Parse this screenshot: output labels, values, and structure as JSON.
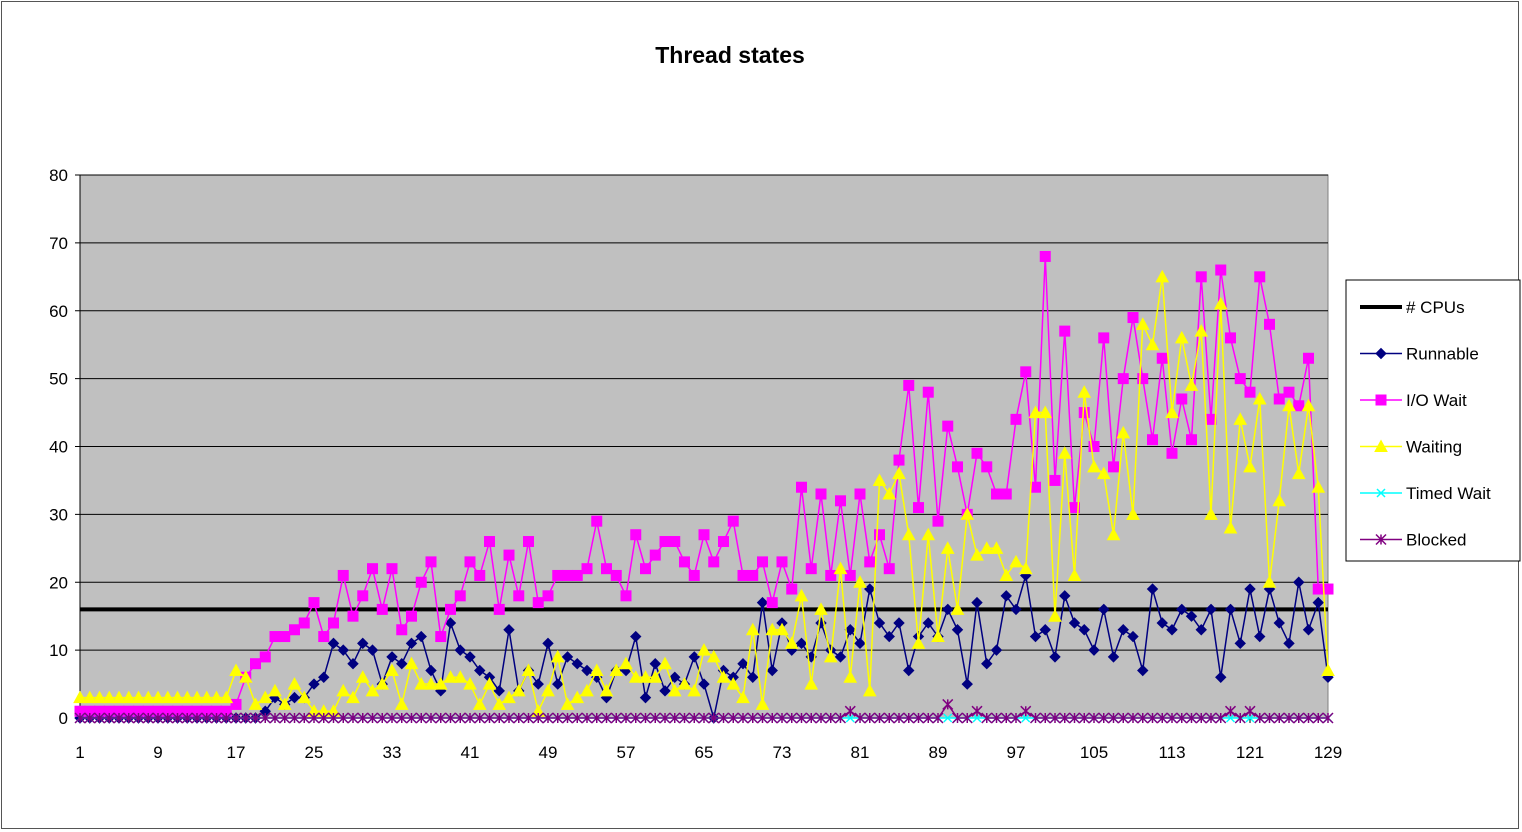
{
  "chart_data": {
    "type": "line",
    "title": "Thread states",
    "xlabel": "",
    "ylabel": "",
    "ylim": [
      0,
      80
    ],
    "yticks": [
      0,
      10,
      20,
      30,
      40,
      50,
      60,
      70,
      80
    ],
    "xticks": [
      1,
      9,
      17,
      25,
      33,
      41,
      49,
      57,
      65,
      73,
      81,
      89,
      97,
      105,
      113,
      121,
      129
    ],
    "x_start": 1,
    "x_end": 129,
    "grid": true,
    "legend_position": "right",
    "series": [
      {
        "name": "# CPUs",
        "color": "#000000",
        "marker": "none",
        "constant": 16
      },
      {
        "name": "Runnable",
        "color": "#000080",
        "marker": "diamond",
        "values": [
          0,
          0,
          0,
          0,
          0,
          0,
          0,
          0,
          0,
          0,
          0,
          0,
          0,
          0,
          0,
          0,
          0,
          0,
          0,
          1,
          3,
          2,
          3,
          3,
          5,
          6,
          11,
          10,
          8,
          11,
          10,
          5,
          9,
          8,
          11,
          12,
          7,
          4,
          14,
          10,
          9,
          7,
          6,
          4,
          13,
          4,
          7,
          5,
          11,
          5,
          9,
          8,
          7,
          6,
          3,
          7,
          7,
          12,
          3,
          8,
          4,
          6,
          5,
          9,
          5,
          0,
          7,
          6,
          8,
          6,
          17,
          7,
          14,
          10,
          11,
          9,
          14,
          10,
          9,
          13,
          11,
          19,
          14,
          12,
          14,
          7,
          12,
          14,
          12,
          16,
          13,
          5,
          17,
          8,
          10,
          18,
          16,
          21,
          12,
          13,
          9,
          18,
          14,
          13,
          10,
          16,
          9,
          13,
          12,
          7,
          19,
          14,
          13,
          16,
          15,
          13,
          16,
          6,
          16,
          11,
          19,
          12,
          19,
          14,
          11,
          20,
          13,
          17,
          6
        ]
      },
      {
        "name": "I/O Wait",
        "color": "#ff00ff",
        "marker": "square",
        "values": [
          1,
          1,
          1,
          1,
          1,
          1,
          1,
          1,
          1,
          1,
          1,
          1,
          1,
          1,
          1,
          1,
          2,
          6,
          8,
          9,
          12,
          12,
          13,
          14,
          17,
          12,
          14,
          21,
          15,
          18,
          22,
          16,
          22,
          13,
          15,
          20,
          23,
          12,
          16,
          18,
          23,
          21,
          26,
          16,
          24,
          18,
          26,
          17,
          18,
          21,
          21,
          21,
          22,
          29,
          22,
          21,
          18,
          27,
          22,
          24,
          26,
          26,
          23,
          21,
          27,
          23,
          26,
          29,
          21,
          21,
          23,
          17,
          23,
          19,
          34,
          22,
          33,
          21,
          32,
          21,
          33,
          23,
          27,
          22,
          38,
          49,
          31,
          48,
          29,
          43,
          37,
          30,
          39,
          37,
          33,
          33,
          44,
          51,
          34,
          68,
          35,
          57,
          31,
          45,
          40,
          56,
          37,
          50,
          59,
          50,
          41,
          53,
          39,
          47,
          41,
          65,
          44,
          66,
          56,
          50,
          48,
          65,
          58,
          47,
          48,
          46,
          53,
          19,
          19
        ]
      },
      {
        "name": "Waiting",
        "color": "#ffff00",
        "marker": "triangle",
        "values": [
          3,
          3,
          3,
          3,
          3,
          3,
          3,
          3,
          3,
          3,
          3,
          3,
          3,
          3,
          3,
          3,
          7,
          6,
          2,
          3,
          4,
          2,
          5,
          3,
          1,
          1,
          1,
          4,
          3,
          6,
          4,
          5,
          7,
          2,
          8,
          5,
          5,
          5,
          6,
          6,
          5,
          2,
          5,
          2,
          3,
          4,
          7,
          1,
          4,
          9,
          2,
          3,
          4,
          7,
          4,
          7,
          8,
          6,
          6,
          6,
          8,
          4,
          5,
          4,
          10,
          9,
          6,
          5,
          3,
          13,
          2,
          13,
          13,
          11,
          18,
          5,
          16,
          9,
          22,
          6,
          20,
          4,
          35,
          33,
          36,
          27,
          11,
          27,
          12,
          25,
          16,
          30,
          24,
          25,
          25,
          21,
          23,
          22,
          45,
          45,
          15,
          39,
          21,
          48,
          37,
          36,
          27,
          42,
          30,
          58,
          55,
          65,
          45,
          56,
          49,
          57,
          30,
          61,
          28,
          44,
          37,
          47,
          20,
          32,
          46,
          36,
          46,
          34,
          7
        ]
      },
      {
        "name": "Timed Wait",
        "color": "#00ffff",
        "marker": "x",
        "values": [
          0,
          0,
          0,
          0,
          0,
          0,
          0,
          0,
          0,
          0,
          0,
          0,
          0,
          0,
          0,
          0,
          0,
          0,
          0,
          0,
          0,
          0,
          0,
          0,
          0,
          0,
          0,
          0,
          0,
          0,
          0,
          0,
          0,
          0,
          0,
          0,
          0,
          0,
          0,
          0,
          0,
          0,
          0,
          0,
          0,
          0,
          0,
          0,
          0,
          0,
          0,
          0,
          0,
          0,
          0,
          0,
          0,
          0,
          0,
          0,
          0,
          0,
          0,
          0,
          0,
          0,
          0,
          0,
          0,
          0,
          0,
          0,
          0,
          0,
          0,
          0,
          0,
          0,
          0,
          0,
          0,
          0,
          0,
          0,
          0,
          0,
          0,
          0,
          0,
          0,
          0,
          0,
          0,
          0,
          0,
          0,
          0,
          0,
          0,
          0,
          0,
          0,
          0,
          0,
          0,
          0,
          0,
          0,
          0,
          0,
          0,
          0,
          0,
          0,
          0,
          0,
          0,
          0,
          0,
          0,
          0,
          0,
          0,
          0,
          0,
          0,
          0,
          0,
          0
        ]
      },
      {
        "name": "Blocked",
        "color": "#800080",
        "marker": "asterisk",
        "values": [
          0,
          0,
          0,
          0,
          0,
          0,
          0,
          0,
          0,
          0,
          0,
          0,
          0,
          0,
          0,
          0,
          0,
          0,
          0,
          0,
          0,
          0,
          0,
          0,
          0,
          0,
          0,
          0,
          0,
          0,
          0,
          0,
          0,
          0,
          0,
          0,
          0,
          0,
          0,
          0,
          0,
          0,
          0,
          0,
          0,
          0,
          0,
          0,
          0,
          0,
          0,
          0,
          0,
          0,
          0,
          0,
          0,
          0,
          0,
          0,
          0,
          0,
          0,
          0,
          0,
          0,
          0,
          0,
          0,
          0,
          0,
          0,
          0,
          0,
          0,
          0,
          0,
          0,
          0,
          1,
          0,
          0,
          0,
          0,
          0,
          0,
          0,
          0,
          0,
          2,
          0,
          0,
          1,
          0,
          0,
          0,
          0,
          1,
          0,
          0,
          0,
          0,
          0,
          0,
          0,
          0,
          0,
          0,
          0,
          0,
          0,
          0,
          0,
          0,
          0,
          0,
          0,
          0,
          1,
          0,
          1,
          0,
          0,
          0,
          0,
          0,
          0,
          0,
          0
        ]
      }
    ]
  }
}
